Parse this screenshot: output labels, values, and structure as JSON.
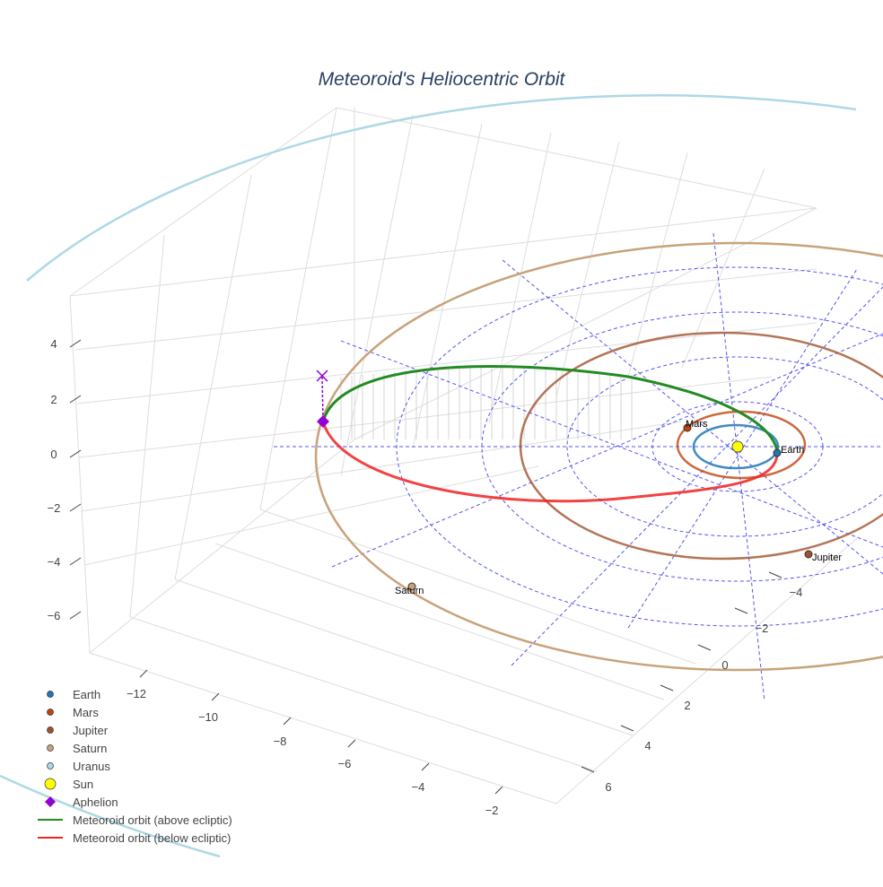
{
  "chart_data": {
    "type": "scatter3d",
    "title": "Meteoroid's Heliocentric Orbit",
    "axes": {
      "x": {
        "ticks": [
          "−12",
          "−10",
          "−8",
          "−6",
          "−4",
          "−2"
        ]
      },
      "y": {
        "ticks": [
          "−4",
          "−2",
          "0",
          "2",
          "4",
          "6"
        ]
      },
      "z": {
        "ticks": [
          "4",
          "2",
          "0",
          "−2",
          "−4",
          "−6"
        ]
      }
    },
    "point_labels": {
      "earth": "Earth",
      "mars": "Mars",
      "jupiter": "Jupiter",
      "saturn": "Saturn"
    },
    "legend": {
      "placement": "bottom-left",
      "items": [
        {
          "name": "Earth",
          "symbol": "circle",
          "color": "#1f77b4"
        },
        {
          "name": "Mars",
          "symbol": "circle",
          "color": "#c1440e"
        },
        {
          "name": "Jupiter",
          "symbol": "circle",
          "color": "#a0522d"
        },
        {
          "name": "Saturn",
          "symbol": "circle",
          "color": "#c8a27a"
        },
        {
          "name": "Uranus",
          "symbol": "circle",
          "color": "#add8e6"
        },
        {
          "name": "Sun",
          "symbol": "circle-large",
          "color": "#ffff00"
        },
        {
          "name": "Aphelion",
          "symbol": "diamond",
          "color": "#9400d3"
        },
        {
          "name": "Meteoroid orbit (above ecliptic)",
          "symbol": "line",
          "color": "#228b22"
        },
        {
          "name": "Meteoroid orbit (below ecliptic)",
          "symbol": "line",
          "color": "#ee2222"
        }
      ]
    }
  }
}
